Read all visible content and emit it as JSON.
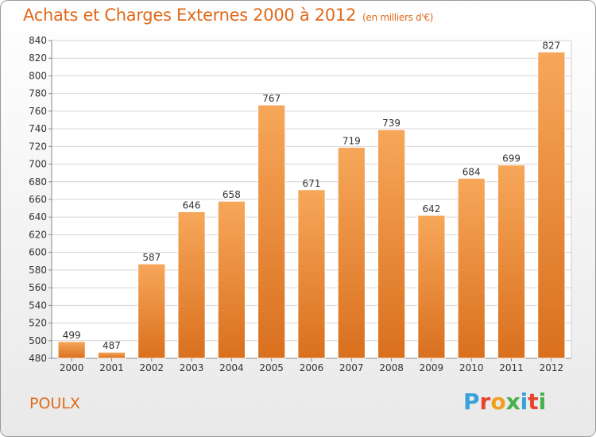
{
  "title": "Achats et Charges Externes 2000 à 2012",
  "subtitle": "(en milliers d'€)",
  "place": "POULX",
  "logo": {
    "text": "Proxiti",
    "colors": [
      "#3aa0d8",
      "#e8432e",
      "#f0a020",
      "#46b04a",
      "#3aa0d8",
      "#e8432e",
      "#46b04a"
    ]
  },
  "colors": {
    "bar_top": "#f7a75a",
    "bar_bottom": "#d9701e",
    "accent": "#e06a1a"
  },
  "chart_data": {
    "type": "bar",
    "title": "Achats et Charges Externes 2000 à 2012",
    "xlabel": "",
    "ylabel": "",
    "categories": [
      "2000",
      "2001",
      "2002",
      "2003",
      "2004",
      "2005",
      "2006",
      "2007",
      "2008",
      "2009",
      "2010",
      "2011",
      "2012"
    ],
    "values": [
      499,
      487,
      587,
      646,
      658,
      767,
      671,
      719,
      739,
      642,
      684,
      699,
      827
    ],
    "ylim": [
      480,
      840
    ],
    "ytick_step": 20,
    "grid": true,
    "data_labels": true
  }
}
